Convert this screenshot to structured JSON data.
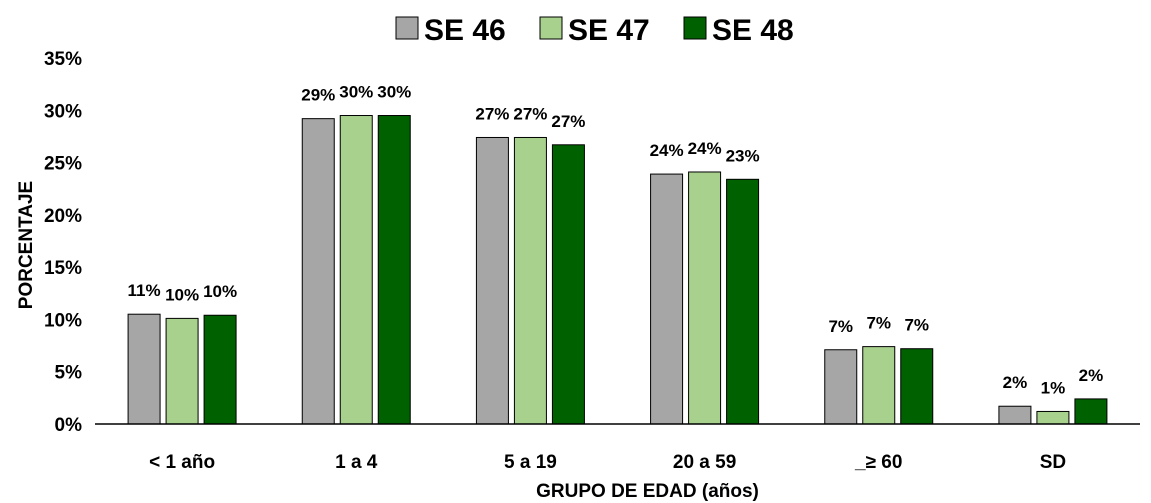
{
  "chart_data": {
    "type": "bar",
    "categories": [
      "< 1 año",
      "1 a 4",
      "5 a 19",
      "20 a 59",
      "_≥ 60",
      "SD"
    ],
    "series": [
      {
        "name": "SE 46",
        "color": "#A6A6A6",
        "values": [
          10.5,
          29.2,
          27.4,
          23.9,
          7.1,
          1.7
        ],
        "labels": [
          "11%",
          "29%",
          "27%",
          "24%",
          "7%",
          "2%"
        ]
      },
      {
        "name": "SE 47",
        "color": "#A9D18E",
        "values": [
          10.1,
          29.5,
          27.4,
          24.1,
          7.4,
          1.2
        ],
        "labels": [
          "10%",
          "30%",
          "27%",
          "24%",
          "7%",
          "1%"
        ]
      },
      {
        "name": "SE 48",
        "color": "#006100",
        "values": [
          10.4,
          29.5,
          26.7,
          23.4,
          7.2,
          2.4
        ],
        "labels": [
          "10%",
          "30%",
          "27%",
          "23%",
          "7%",
          "2%"
        ]
      }
    ],
    "title": "",
    "xlabel": "GRUPO DE EDAD (años)",
    "ylabel": "PORCENTAJE",
    "ylim": [
      0,
      35
    ],
    "yticks": [
      "0%",
      "5%",
      "10%",
      "15%",
      "20%",
      "25%",
      "30%",
      "35%"
    ],
    "grid": false,
    "legend_position": "top-center"
  }
}
